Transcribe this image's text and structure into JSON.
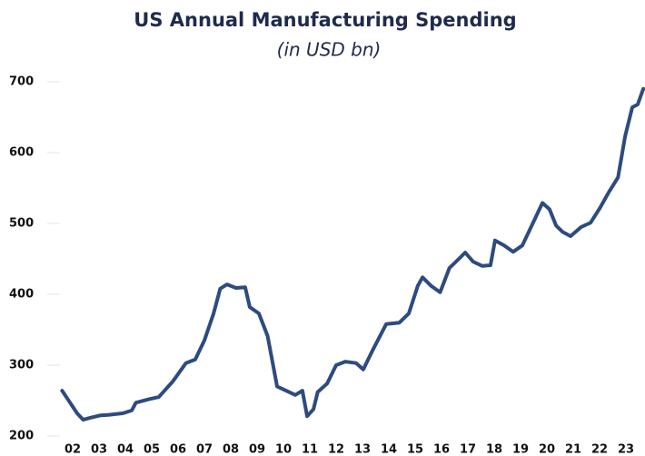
{
  "chart_data": {
    "type": "line",
    "title": "US Annual Manufacturing Spending",
    "subtitle": "(in USD bn)",
    "series": [
      {
        "name": "US Annual Manufacturing Spending",
        "color": "#2d4b7f",
        "x": [
          2001.6,
          2001.83,
          2002.17,
          2002.4,
          2002.7,
          2003.03,
          2003.4,
          2003.9,
          2004.24,
          2004.4,
          2004.9,
          2005.27,
          2005.8,
          2006.3,
          2006.65,
          2007.0,
          2007.35,
          2007.6,
          2007.86,
          2008.2,
          2008.55,
          2008.72,
          2009.07,
          2009.4,
          2009.76,
          2010.1,
          2010.45,
          2010.72,
          2010.9,
          2011.14,
          2011.3,
          2011.66,
          2012.0,
          2012.35,
          2012.76,
          2013.03,
          2013.4,
          2013.9,
          2014.4,
          2014.76,
          2015.1,
          2015.28,
          2015.6,
          2015.95,
          2016.3,
          2016.66,
          2016.9,
          2017.2,
          2017.55,
          2017.86,
          2018.03,
          2018.38,
          2018.72,
          2019.07,
          2019.4,
          2019.83,
          2020.1,
          2020.35,
          2020.6,
          2020.9,
          2021.3,
          2021.66,
          2022.0,
          2022.35,
          2022.7,
          2022.97,
          2023.24,
          2023.45,
          2023.66
        ],
        "values": [
          264,
          251,
          232,
          223,
          226,
          229,
          230,
          232,
          236,
          247,
          252,
          255,
          277,
          303,
          308,
          335,
          373,
          408,
          414,
          409,
          410,
          382,
          373,
          341,
          270,
          264,
          258,
          264,
          228,
          238,
          262,
          274,
          300,
          305,
          303,
          294,
          322,
          358,
          360,
          373,
          412,
          424,
          412,
          403,
          437,
          450,
          459,
          446,
          440,
          441,
          476,
          469,
          460,
          469,
          495,
          529,
          520,
          497,
          488,
          482,
          495,
          501,
          521,
          544,
          565,
          623,
          664,
          668,
          690
        ]
      }
    ],
    "xlim": [
      2001.4,
      2023.7
    ],
    "xticks": [
      {
        "value": 2002,
        "label": "02"
      },
      {
        "value": 2003,
        "label": "03"
      },
      {
        "value": 2004,
        "label": "04"
      },
      {
        "value": 2005,
        "label": "05"
      },
      {
        "value": 2006,
        "label": "06"
      },
      {
        "value": 2007,
        "label": "07"
      },
      {
        "value": 2008,
        "label": "08"
      },
      {
        "value": 2009,
        "label": "09"
      },
      {
        "value": 2010,
        "label": "10"
      },
      {
        "value": 2011,
        "label": "11"
      },
      {
        "value": 2012,
        "label": "12"
      },
      {
        "value": 2013,
        "label": "13"
      },
      {
        "value": 2014,
        "label": "14"
      },
      {
        "value": 2015,
        "label": "15"
      },
      {
        "value": 2016,
        "label": "16"
      },
      {
        "value": 2017,
        "label": "17"
      },
      {
        "value": 2018,
        "label": "18"
      },
      {
        "value": 2019,
        "label": "19"
      },
      {
        "value": 2020,
        "label": "20"
      },
      {
        "value": 2021,
        "label": "21"
      },
      {
        "value": 2022,
        "label": "22"
      },
      {
        "value": 2023,
        "label": "23"
      }
    ],
    "ylim": [
      200,
      700
    ],
    "yticks": [
      200,
      300,
      400,
      500,
      600,
      700
    ]
  }
}
